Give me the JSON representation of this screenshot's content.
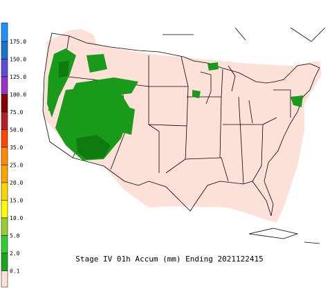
{
  "caption": "Stage IV 01h Accum (mm) Ending 2021122415",
  "legend": {
    "top_color": "#1e90ff",
    "items": [
      {
        "label": "175.0",
        "color": "#1874cd"
      },
      {
        "label": "150.0",
        "color": "#5f4bd8"
      },
      {
        "label": "125.0",
        "color": "#9932cc"
      },
      {
        "label": "100.0",
        "color": "#8b0000"
      },
      {
        "label": "75.0",
        "color": "#b22222"
      },
      {
        "label": "50.0",
        "color": "#ff4500"
      },
      {
        "label": "35.0",
        "color": "#ff8c00"
      },
      {
        "label": "25.0",
        "color": "#ffa500"
      },
      {
        "label": "20.0",
        "color": "#ffd700"
      },
      {
        "label": "15.0",
        "color": "#ffff00"
      },
      {
        "label": "10.0",
        "color": "#9acd32"
      },
      {
        "label": "5.0",
        "color": "#32cd32"
      },
      {
        "label": "2.0",
        "color": "#1aa51a"
      },
      {
        "label": "0.1",
        "color": "#fbe2dc"
      }
    ]
  }
}
